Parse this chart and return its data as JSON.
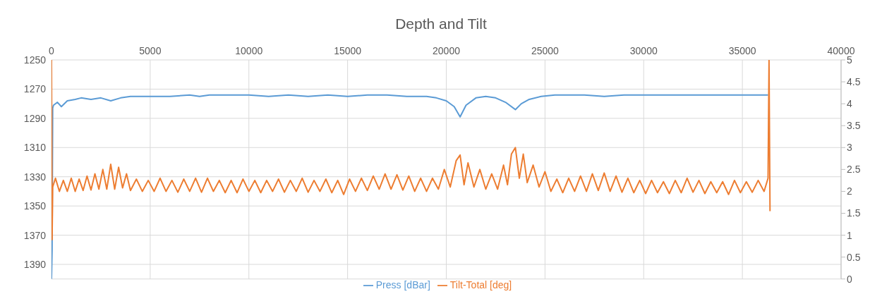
{
  "chart_data": {
    "type": "line",
    "title": "Depth and Tilt",
    "xlim": [
      0,
      40000
    ],
    "xticks": [
      0,
      5000,
      10000,
      15000,
      20000,
      25000,
      30000,
      35000,
      40000
    ],
    "ylim": [
      1400,
      1250
    ],
    "yticks": [
      1250,
      1270,
      1290,
      1310,
      1330,
      1350,
      1370,
      1390
    ],
    "y2lim": [
      0,
      5
    ],
    "y2ticks": [
      0,
      0.5,
      1,
      1.5,
      2,
      2.5,
      3,
      3.5,
      4,
      4.5,
      5
    ],
    "grid": true,
    "legend": "bottom",
    "marker": "none",
    "line_style": "solid",
    "series": [
      {
        "name": "Press [dBar]",
        "color": "#5b9bd5",
        "x": [
          0,
          30,
          60,
          100,
          300,
          500,
          800,
          1200,
          1500,
          2000,
          2500,
          3000,
          3500,
          4000,
          5000,
          6000,
          7000,
          7500,
          8000,
          9000,
          10000,
          11000,
          12000,
          13000,
          14000,
          15000,
          16000,
          17000,
          18000,
          19000,
          19500,
          20000,
          20400,
          20700,
          21000,
          21500,
          22000,
          22500,
          23000,
          23500,
          23800,
          24200,
          24800,
          25500,
          27000,
          28000,
          29000,
          30000,
          32000,
          34000,
          36000,
          36300
        ],
        "values": [
          1400,
          1380,
          1283,
          1281,
          1279,
          1282,
          1278,
          1277,
          1276,
          1277,
          1276,
          1278,
          1276,
          1275,
          1275,
          1275,
          1274,
          1275,
          1274,
          1274,
          1274,
          1275,
          1274,
          1275,
          1274,
          1275,
          1274,
          1274,
          1275,
          1275,
          1276,
          1278,
          1282,
          1289,
          1281,
          1276,
          1275,
          1276,
          1279,
          1284,
          1280,
          1277,
          1275,
          1274,
          1274,
          1275,
          1274,
          1274,
          1274,
          1274,
          1274,
          1274
        ]
      },
      {
        "name": "Tilt-Total [deg]",
        "color": "#ed7d31",
        "axis": "y2",
        "x": [
          0,
          30,
          60,
          200,
          400,
          600,
          800,
          1000,
          1200,
          1400,
          1600,
          1800,
          2000,
          2200,
          2400,
          2600,
          2800,
          3000,
          3200,
          3400,
          3600,
          3800,
          4000,
          4300,
          4600,
          4900,
          5200,
          5500,
          5800,
          6100,
          6400,
          6700,
          7000,
          7300,
          7600,
          7900,
          8200,
          8500,
          8800,
          9100,
          9400,
          9700,
          10000,
          10300,
          10600,
          10900,
          11200,
          11500,
          11800,
          12100,
          12400,
          12700,
          13000,
          13300,
          13600,
          13900,
          14200,
          14500,
          14800,
          15100,
          15400,
          15700,
          16000,
          16300,
          16600,
          16900,
          17200,
          17500,
          17800,
          18100,
          18400,
          18700,
          19000,
          19300,
          19600,
          19900,
          20200,
          20500,
          20700,
          20900,
          21100,
          21400,
          21700,
          22000,
          22300,
          22600,
          22900,
          23100,
          23300,
          23500,
          23700,
          23900,
          24100,
          24400,
          24700,
          25000,
          25300,
          25600,
          25900,
          26200,
          26500,
          26800,
          27100,
          27400,
          27700,
          28000,
          28300,
          28600,
          28900,
          29200,
          29500,
          29800,
          30100,
          30400,
          30700,
          31000,
          31300,
          31600,
          31900,
          32200,
          32500,
          32800,
          33100,
          33400,
          33700,
          34000,
          34300,
          34600,
          34900,
          35200,
          35500,
          35800,
          36100,
          36300,
          36350,
          36400
        ],
        "values": [
          5,
          0.9,
          2.1,
          2.3,
          2.0,
          2.25,
          2.0,
          2.3,
          2.0,
          2.28,
          2.02,
          2.35,
          2.03,
          2.4,
          2.05,
          2.5,
          2.05,
          2.62,
          2.05,
          2.55,
          2.08,
          2.4,
          2.02,
          2.28,
          2.0,
          2.25,
          2.0,
          2.3,
          2.0,
          2.25,
          1.98,
          2.28,
          2.0,
          2.3,
          1.98,
          2.3,
          2.0,
          2.25,
          1.97,
          2.25,
          1.97,
          2.28,
          2.0,
          2.25,
          1.97,
          2.25,
          2.0,
          2.28,
          1.98,
          2.25,
          2.0,
          2.3,
          1.98,
          2.25,
          2.0,
          2.28,
          1.97,
          2.25,
          1.93,
          2.28,
          2.0,
          2.3,
          2.02,
          2.35,
          2.05,
          2.4,
          2.05,
          2.38,
          2.03,
          2.35,
          2.0,
          2.3,
          2.0,
          2.3,
          2.05,
          2.5,
          2.1,
          2.7,
          2.83,
          2.15,
          2.65,
          2.1,
          2.5,
          2.05,
          2.4,
          2.05,
          2.6,
          2.15,
          2.85,
          3.0,
          2.3,
          2.85,
          2.2,
          2.6,
          2.1,
          2.45,
          2.0,
          2.28,
          1.97,
          2.3,
          2.0,
          2.35,
          2.0,
          2.4,
          2.02,
          2.42,
          2.0,
          2.35,
          1.98,
          2.3,
          1.97,
          2.25,
          1.95,
          2.25,
          1.97,
          2.22,
          1.95,
          2.25,
          1.97,
          2.3,
          1.98,
          2.25,
          1.95,
          2.22,
          1.97,
          2.22,
          1.93,
          2.25,
          1.97,
          2.22,
          1.98,
          2.25,
          2.0,
          2.3,
          5,
          1.55
        ]
      }
    ]
  }
}
